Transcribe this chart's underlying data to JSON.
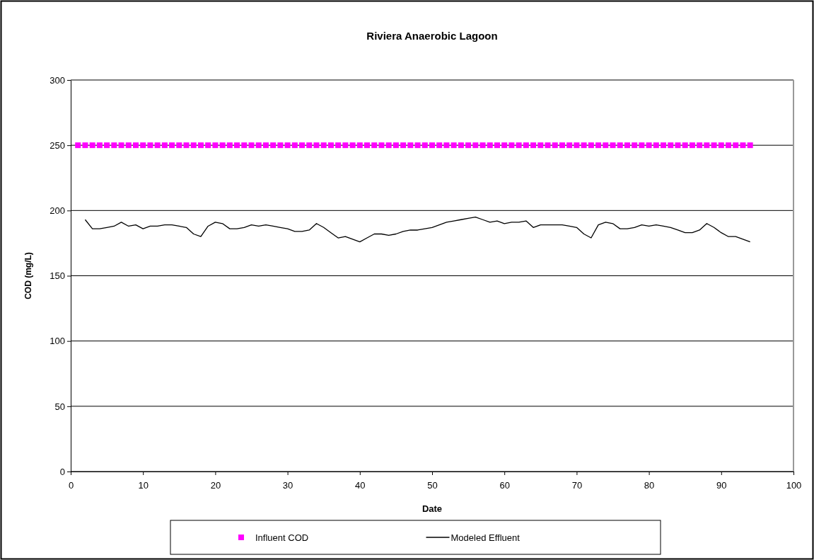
{
  "chart_data": {
    "type": "line",
    "title": "Riviera Anaerobic Lagoon",
    "xlabel": "Date",
    "ylabel": "COD (mg/L)",
    "xlim": [
      0,
      100
    ],
    "xticks": [
      0,
      10,
      20,
      30,
      40,
      50,
      60,
      70,
      80,
      90,
      100
    ],
    "ylim": [
      0,
      300
    ],
    "yticks": [
      0,
      50,
      100,
      150,
      200,
      250,
      300
    ],
    "grid": "y",
    "legend": "bottom",
    "series": [
      {
        "name": "Influent COD",
        "type": "scatter",
        "marker": "square",
        "color": "#ff00ff",
        "x": [
          1,
          2,
          3,
          4,
          5,
          6,
          7,
          8,
          9,
          10,
          11,
          12,
          13,
          14,
          15,
          16,
          17,
          18,
          19,
          20,
          21,
          22,
          23,
          24,
          25,
          26,
          27,
          28,
          29,
          30,
          31,
          32,
          33,
          34,
          35,
          36,
          37,
          38,
          39,
          40,
          41,
          42,
          43,
          44,
          45,
          46,
          47,
          48,
          49,
          50,
          51,
          52,
          53,
          54,
          55,
          56,
          57,
          58,
          59,
          60,
          61,
          62,
          63,
          64,
          65,
          66,
          67,
          68,
          69,
          70,
          71,
          72,
          73,
          74,
          75,
          76,
          77,
          78,
          79,
          80,
          81,
          82,
          83,
          84,
          85,
          86,
          87,
          88,
          89,
          90,
          91,
          92,
          93,
          94
        ],
        "values": [
          250,
          250,
          250,
          250,
          250,
          250,
          250,
          250,
          250,
          250,
          250,
          250,
          250,
          250,
          250,
          250,
          250,
          250,
          250,
          250,
          250,
          250,
          250,
          250,
          250,
          250,
          250,
          250,
          250,
          250,
          250,
          250,
          250,
          250,
          250,
          250,
          250,
          250,
          250,
          250,
          250,
          250,
          250,
          250,
          250,
          250,
          250,
          250,
          250,
          250,
          250,
          250,
          250,
          250,
          250,
          250,
          250,
          250,
          250,
          250,
          250,
          250,
          250,
          250,
          250,
          250,
          250,
          250,
          250,
          250,
          250,
          250,
          250,
          250,
          250,
          250,
          250,
          250,
          250,
          250,
          250,
          250,
          250,
          250,
          250,
          250,
          250,
          250,
          250,
          250,
          250,
          250,
          250,
          250
        ]
      },
      {
        "name": "Modeled Effluent",
        "type": "line",
        "marker": "none",
        "line_style": "solid",
        "color": "#000000",
        "x": [
          2,
          3,
          4,
          5,
          6,
          7,
          8,
          9,
          10,
          11,
          12,
          13,
          14,
          15,
          16,
          17,
          18,
          19,
          20,
          21,
          22,
          23,
          24,
          25,
          26,
          27,
          28,
          29,
          30,
          31,
          32,
          33,
          34,
          35,
          36,
          37,
          38,
          39,
          40,
          41,
          42,
          43,
          44,
          45,
          46,
          47,
          48,
          49,
          50,
          51,
          52,
          53,
          54,
          55,
          56,
          57,
          58,
          59,
          60,
          61,
          62,
          63,
          64,
          65,
          66,
          67,
          68,
          69,
          70,
          71,
          72,
          73,
          74,
          75,
          76,
          77,
          78,
          79,
          80,
          81,
          82,
          83,
          84,
          85,
          86,
          87,
          88,
          89,
          90,
          91,
          92,
          93,
          94
        ],
        "values": [
          193,
          186,
          186,
          187,
          188,
          191,
          188,
          189,
          186,
          188,
          188,
          189,
          189,
          188,
          187,
          182,
          180,
          188,
          191,
          190,
          186,
          186,
          187,
          189,
          188,
          189,
          188,
          187,
          186,
          184,
          184,
          185,
          190,
          187,
          183,
          179,
          180,
          178,
          176,
          179,
          182,
          182,
          181,
          182,
          184,
          185,
          185,
          186,
          187,
          189,
          191,
          192,
          193,
          194,
          195,
          193,
          191,
          192,
          190,
          191,
          191,
          192,
          187,
          189,
          189,
          189,
          189,
          188,
          187,
          182,
          179,
          189,
          191,
          190,
          186,
          186,
          187,
          189,
          188,
          189,
          188,
          187,
          185,
          183,
          183,
          185,
          190,
          187,
          183,
          180,
          180,
          178,
          176
        ]
      }
    ]
  }
}
